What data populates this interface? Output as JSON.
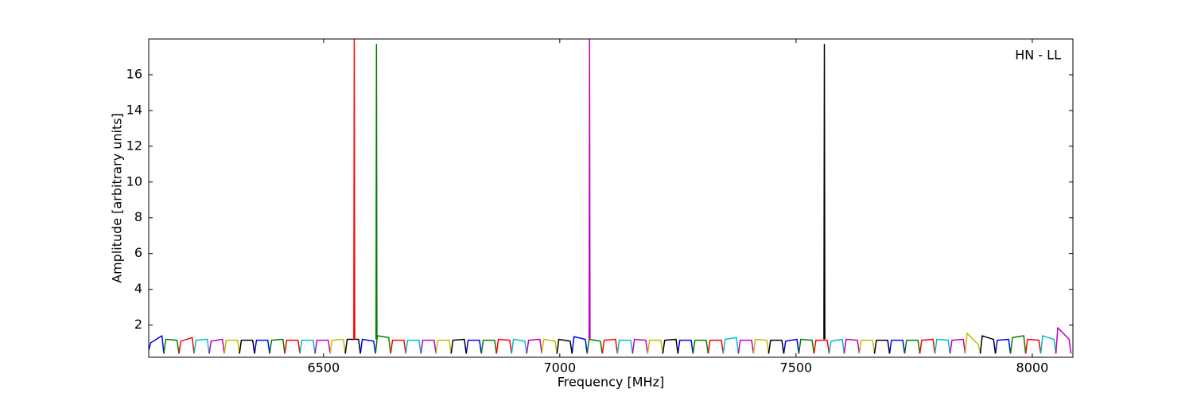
{
  "chart_data": {
    "type": "line",
    "xlabel": "Frequency [MHz]",
    "ylabel": "Amplitude [arbitrary units]",
    "annotation": "HN - LL",
    "xlim": [
      6130,
      8086
    ],
    "ylim": [
      0.2,
      18
    ],
    "xticks": [
      6500,
      7000,
      7500,
      8000
    ],
    "yticks": [
      2,
      4,
      6,
      8,
      10,
      12,
      14,
      16
    ],
    "series": [
      {
        "color": "#0000ff",
        "x": [
          6130,
          6134,
          6158,
          6162,
          6162,
          6354,
          6358,
          6382,
          6386,
          6386,
          6578,
          6582,
          6606,
          6610,
          6610,
          6802,
          6806,
          6830,
          6834,
          6834,
          7026,
          7030,
          7054,
          7058,
          7058,
          7250,
          7254,
          7278,
          7282,
          7282,
          7474,
          7478,
          7502,
          7506,
          7506,
          7698,
          7702,
          7726,
          7730,
          7730,
          7922,
          7926,
          7950,
          7954,
          7954
        ],
        "values": [
          0.6,
          1.0,
          1.4,
          0.4,
          null,
          0.4,
          1.15,
          1.15,
          0.4,
          null,
          0.4,
          1.2,
          1.1,
          0.4,
          null,
          0.4,
          1.15,
          1.15,
          0.4,
          null,
          0.4,
          1.35,
          1.2,
          0.4,
          null,
          0.4,
          1.15,
          1.15,
          0.4,
          null,
          0.4,
          1.1,
          1.2,
          0.4,
          null,
          0.4,
          1.15,
          1.15,
          0.4,
          null,
          0.4,
          1.15,
          1.2,
          0.4,
          null
        ]
      },
      {
        "color": "#008000",
        "x": [
          6162,
          6166,
          6190,
          6194,
          6194,
          6386,
          6390,
          6414,
          6418,
          6418,
          6610,
          6614,
          6638,
          6642,
          6642,
          6834,
          6838,
          6862,
          6866,
          6866,
          7058,
          7062,
          7086,
          7090,
          7090,
          7282,
          7286,
          7310,
          7314,
          7314,
          7506,
          7510,
          7534,
          7538,
          7538,
          7730,
          7734,
          7758,
          7762,
          7762,
          7954,
          7958,
          7982,
          7986,
          7986
        ],
        "values": [
          0.4,
          1.2,
          1.15,
          0.4,
          null,
          0.4,
          1.15,
          1.2,
          0.4,
          null,
          0.4,
          1.4,
          1.3,
          0.4,
          null,
          0.4,
          1.15,
          1.15,
          0.4,
          null,
          0.4,
          1.2,
          1.1,
          0.4,
          null,
          0.4,
          1.15,
          1.15,
          0.4,
          null,
          0.4,
          1.2,
          1.15,
          0.4,
          null,
          0.4,
          1.15,
          1.15,
          0.4,
          null,
          0.4,
          1.3,
          1.4,
          0.4,
          null
        ]
      },
      {
        "color": "#ff0000",
        "x": [
          6194,
          6198,
          6222,
          6226,
          6226,
          6418,
          6422,
          6446,
          6450,
          6450,
          6642,
          6646,
          6670,
          6674,
          6674,
          6866,
          6870,
          6894,
          6898,
          6898,
          7090,
          7094,
          7118,
          7122,
          7122,
          7314,
          7318,
          7342,
          7346,
          7346,
          7538,
          7542,
          7566,
          7570,
          7570,
          7762,
          7766,
          7790,
          7794,
          7794,
          7986,
          7990,
          8014,
          8018,
          8018
        ],
        "values": [
          0.4,
          1.1,
          1.3,
          0.4,
          null,
          0.4,
          1.15,
          1.15,
          0.4,
          null,
          0.4,
          1.15,
          1.15,
          0.4,
          null,
          0.4,
          1.2,
          1.15,
          0.4,
          null,
          0.4,
          1.15,
          1.2,
          0.4,
          null,
          0.4,
          1.15,
          1.15,
          0.4,
          null,
          0.4,
          1.15,
          1.15,
          0.4,
          null,
          0.4,
          1.15,
          1.2,
          0.4,
          null,
          0.4,
          1.2,
          1.15,
          0.4,
          null
        ]
      },
      {
        "color": "#00bfbf",
        "x": [
          6226,
          6230,
          6254,
          6258,
          6258,
          6450,
          6454,
          6478,
          6482,
          6482,
          6674,
          6678,
          6702,
          6706,
          6706,
          6898,
          6902,
          6926,
          6930,
          6930,
          7122,
          7126,
          7150,
          7154,
          7154,
          7346,
          7350,
          7374,
          7378,
          7378,
          7570,
          7574,
          7598,
          7602,
          7602,
          7794,
          7798,
          7822,
          7826,
          7826,
          8018,
          8022,
          8046,
          8050,
          8050
        ],
        "values": [
          0.4,
          1.15,
          1.2,
          0.4,
          null,
          0.4,
          1.15,
          1.15,
          0.4,
          null,
          0.4,
          1.15,
          1.15,
          0.4,
          null,
          0.4,
          1.2,
          1.1,
          0.4,
          null,
          0.4,
          1.15,
          1.15,
          0.4,
          null,
          0.4,
          1.2,
          1.3,
          0.4,
          null,
          0.4,
          1.1,
          1.2,
          0.4,
          null,
          0.4,
          1.2,
          1.15,
          0.4,
          null,
          0.4,
          1.4,
          1.2,
          0.4,
          null
        ]
      },
      {
        "color": "#bf00bf",
        "x": [
          6258,
          6262,
          6286,
          6290,
          6290,
          6482,
          6486,
          6510,
          6514,
          6514,
          6706,
          6710,
          6734,
          6738,
          6738,
          6930,
          6934,
          6958,
          6962,
          6962,
          7154,
          7158,
          7182,
          7186,
          7186,
          7378,
          7382,
          7406,
          7410,
          7410,
          7602,
          7606,
          7630,
          7634,
          7634,
          7826,
          7830,
          7854,
          7858,
          7858,
          8050,
          8054,
          8078,
          8082,
          8082
        ],
        "values": [
          0.4,
          1.1,
          1.2,
          0.4,
          null,
          0.4,
          1.15,
          1.15,
          0.4,
          null,
          0.4,
          1.15,
          1.15,
          0.4,
          null,
          0.4,
          1.15,
          1.2,
          0.4,
          null,
          0.4,
          1.2,
          1.15,
          0.4,
          null,
          0.4,
          1.15,
          1.15,
          0.4,
          null,
          0.4,
          1.2,
          1.15,
          0.4,
          null,
          0.4,
          1.15,
          1.2,
          0.4,
          null,
          0.4,
          1.85,
          1.2,
          0.4,
          null
        ]
      },
      {
        "color": "#bfbf00",
        "x": [
          6290,
          6294,
          6318,
          6322,
          6322,
          6514,
          6518,
          6542,
          6546,
          6546,
          6738,
          6742,
          6766,
          6770,
          6770,
          6962,
          6966,
          6990,
          6994,
          6994,
          7186,
          7190,
          7214,
          7218,
          7218,
          7410,
          7414,
          7438,
          7442,
          7442,
          7634,
          7638,
          7662,
          7666,
          7666,
          7858,
          7862,
          7886,
          7890,
          7890
        ],
        "values": [
          0.4,
          1.15,
          1.15,
          0.4,
          null,
          0.4,
          1.15,
          1.2,
          0.4,
          null,
          0.4,
          1.15,
          1.15,
          0.4,
          null,
          0.4,
          1.2,
          1.1,
          0.4,
          null,
          0.4,
          1.15,
          1.15,
          0.4,
          null,
          0.4,
          1.2,
          1.15,
          0.4,
          null,
          0.4,
          1.15,
          1.15,
          0.4,
          null,
          0.4,
          1.55,
          0.9,
          0.4,
          null
        ]
      },
      {
        "color": "#000000",
        "x": [
          6322,
          6326,
          6350,
          6354,
          6354,
          6546,
          6550,
          6574,
          6578,
          6578,
          6770,
          6774,
          6798,
          6802,
          6802,
          6994,
          6998,
          7022,
          7026,
          7026,
          7218,
          7222,
          7246,
          7250,
          7250,
          7442,
          7446,
          7470,
          7474,
          7474,
          7666,
          7670,
          7694,
          7698,
          7698,
          7890,
          7894,
          7918,
          7922,
          7922
        ],
        "values": [
          0.4,
          1.15,
          1.15,
          0.4,
          null,
          0.4,
          1.2,
          1.2,
          0.4,
          null,
          0.4,
          1.15,
          1.2,
          0.4,
          null,
          0.4,
          1.2,
          1.1,
          0.4,
          null,
          0.4,
          1.15,
          1.2,
          0.4,
          null,
          0.4,
          1.15,
          1.15,
          0.4,
          null,
          0.4,
          1.15,
          1.15,
          0.4,
          null,
          0.4,
          1.4,
          1.2,
          0.4,
          null
        ]
      },
      {
        "color": "#ff0000",
        "x": [
          6564,
          6565,
          6566
        ],
        "values": [
          1.2,
          18,
          1.2
        ]
      },
      {
        "color": "#008000",
        "x": [
          6611,
          6612,
          6613
        ],
        "values": [
          1.2,
          17.7,
          1.2
        ]
      },
      {
        "color": "#bf00bf",
        "x": [
          7062,
          7063,
          7064
        ],
        "values": [
          1.2,
          18,
          1.2
        ]
      },
      {
        "color": "#000000",
        "x": [
          7559,
          7560,
          7561
        ],
        "values": [
          1.2,
          17.7,
          1.2
        ]
      }
    ]
  }
}
